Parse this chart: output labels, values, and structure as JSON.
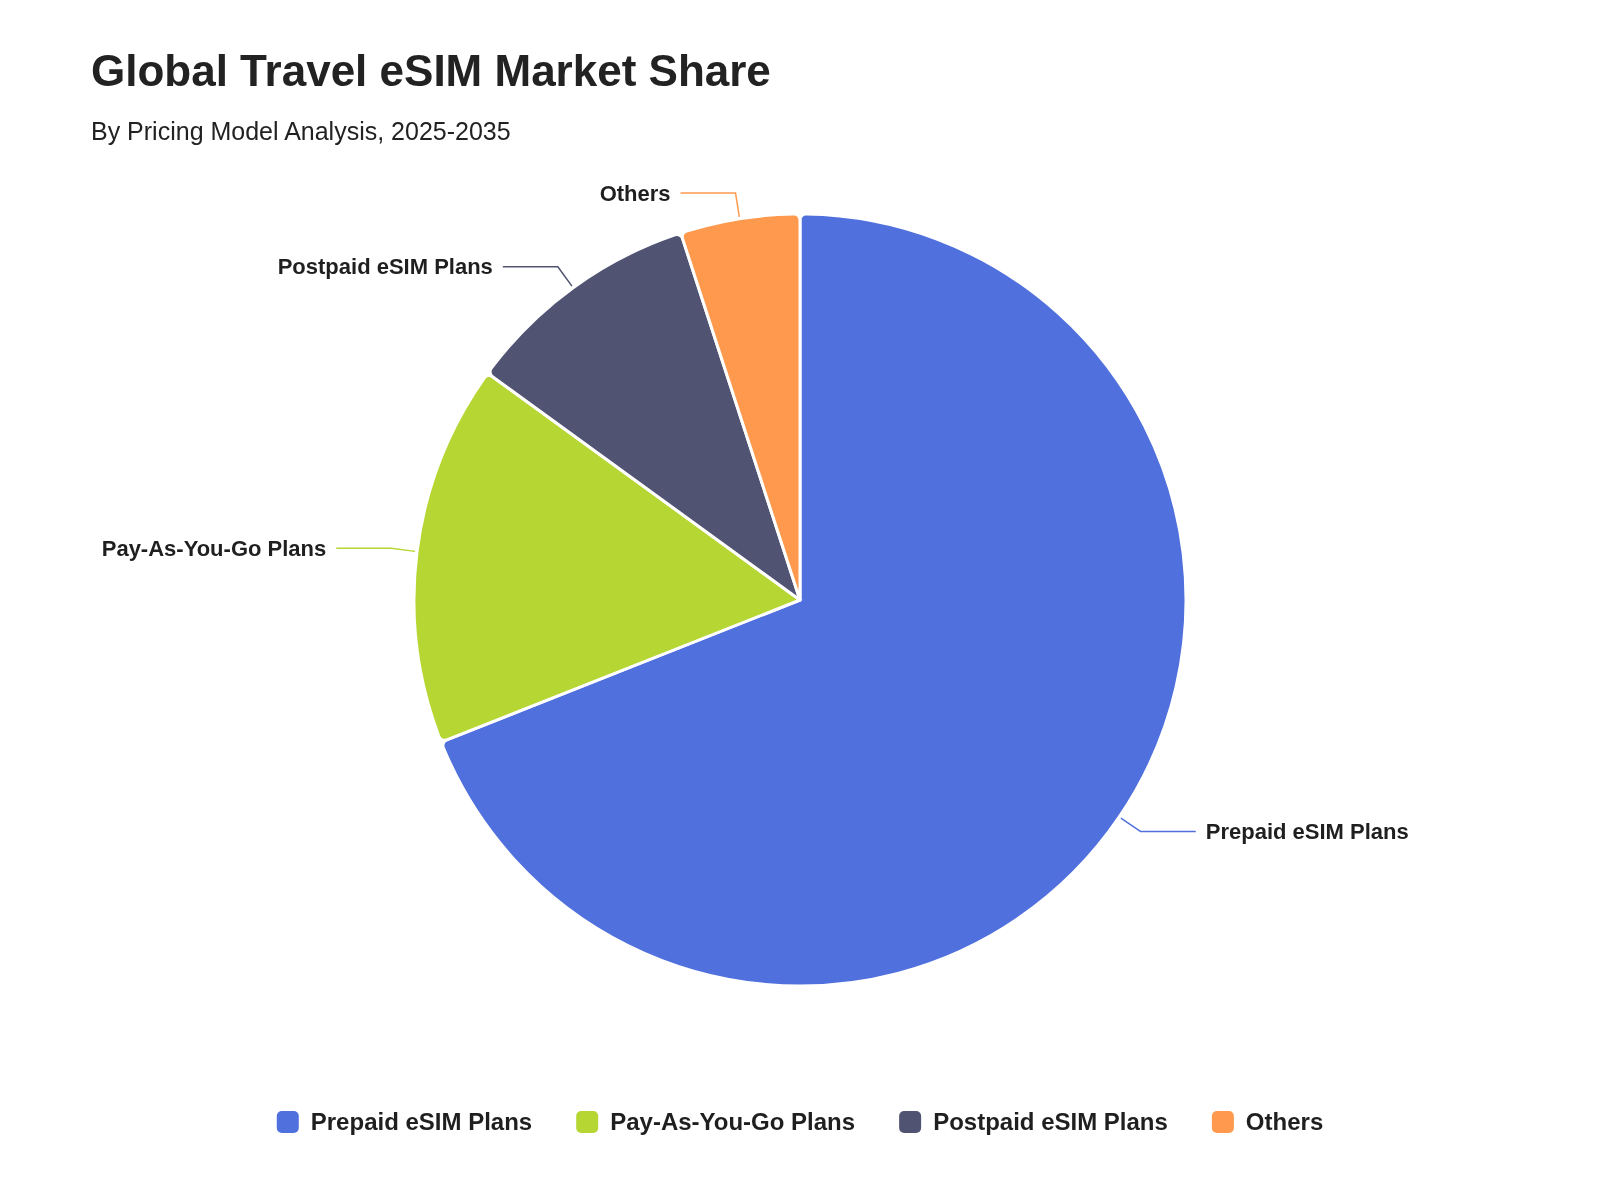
{
  "chart_data": {
    "type": "pie",
    "title": "Global Travel eSIM Market Share",
    "subtitle": "By Pricing Model Analysis, 2025-2035",
    "categories": [
      "Prepaid eSIM Plans",
      "Pay-As-You-Go Plans",
      "Postpaid eSIM Plans",
      "Others"
    ],
    "values": [
      69,
      16,
      10,
      5
    ],
    "colors": [
      "#5070dd",
      "#b6d634",
      "#505372",
      "#ff994d"
    ],
    "legend": "bottom"
  }
}
